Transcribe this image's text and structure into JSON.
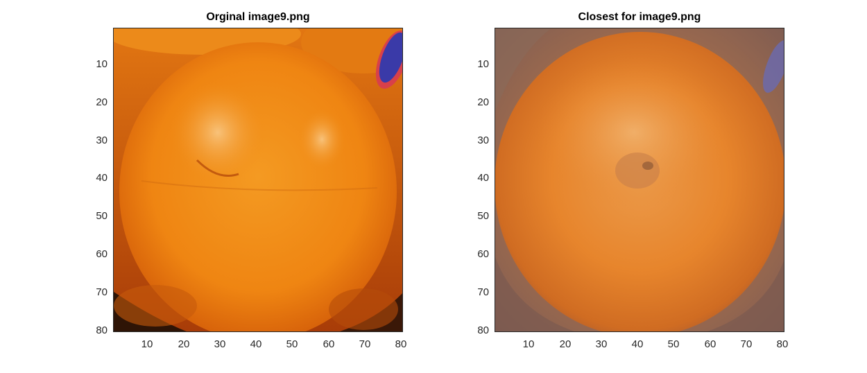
{
  "figure": {
    "panels": [
      {
        "id": "left",
        "title": "Orginal image9.png",
        "xticks": [
          "10",
          "20",
          "30",
          "40",
          "50",
          "60",
          "70",
          "80"
        ],
        "yticks": [
          "10",
          "20",
          "30",
          "40",
          "50",
          "60",
          "70",
          "80"
        ],
        "image_description_colors": {
          "orange_main": "#f08a14",
          "highlight": "#f6b45c",
          "shadow": "#b9480a",
          "background_dark": "#3a1a08",
          "sticker": "#3a3aa8"
        }
      },
      {
        "id": "right",
        "title": "Closest for image9.png",
        "xticks": [
          "10",
          "20",
          "30",
          "40",
          "50",
          "60",
          "70",
          "80"
        ],
        "yticks": [
          "10",
          "20",
          "30",
          "40",
          "50",
          "60",
          "70",
          "80"
        ],
        "image_description_colors": {
          "orange_main": "#e7852c",
          "highlight": "#eea75e",
          "shadow": "#b8652a",
          "background_muted": "#8a6a5a",
          "corner_blue": "#6a6ab0"
        }
      }
    ],
    "axis_range": {
      "x": [
        0.5,
        80.5
      ],
      "y": [
        0.5,
        80.5
      ]
    }
  }
}
